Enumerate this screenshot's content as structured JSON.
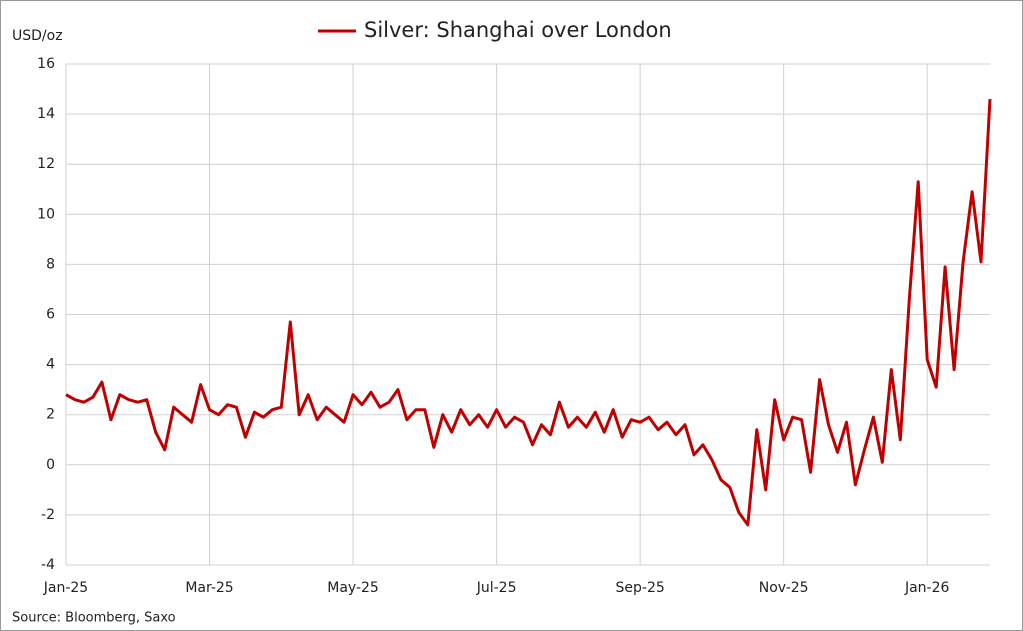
{
  "chart_data": {
    "type": "line",
    "y_label": "USD/oz",
    "source": "Source: Bloomberg, Saxo",
    "categories": [
      "Jan-25",
      null,
      null,
      null,
      null,
      null,
      null,
      null,
      null,
      null,
      null,
      null,
      null,
      null,
      null,
      null,
      "Mar-25",
      null,
      null,
      null,
      null,
      null,
      null,
      null,
      null,
      null,
      null,
      null,
      null,
      null,
      null,
      null,
      "May-25",
      null,
      null,
      null,
      null,
      null,
      null,
      null,
      null,
      null,
      null,
      null,
      null,
      null,
      null,
      null,
      "Jul-25",
      null,
      null,
      null,
      null,
      null,
      null,
      null,
      null,
      null,
      null,
      null,
      null,
      null,
      null,
      null,
      "Sep-25",
      null,
      null,
      null,
      null,
      null,
      null,
      null,
      null,
      null,
      null,
      null,
      null,
      null,
      null,
      null,
      "Nov-25",
      null,
      null,
      null,
      null,
      null,
      null,
      null,
      null,
      null,
      null,
      null,
      null,
      null,
      null,
      null,
      "Jan-26",
      null,
      null,
      null,
      null,
      null,
      null,
      null
    ],
    "series": [
      {
        "name": "Silver: Shanghai over London",
        "color": "#c00000",
        "values": [
          2.8,
          2.6,
          2.5,
          2.7,
          3.3,
          1.8,
          2.8,
          2.6,
          2.5,
          2.6,
          1.3,
          0.6,
          2.3,
          2.0,
          1.7,
          3.2,
          2.2,
          2.0,
          2.4,
          2.3,
          1.1,
          2.1,
          1.9,
          2.2,
          2.3,
          5.7,
          2.0,
          2.8,
          1.8,
          2.3,
          2.0,
          1.7,
          2.8,
          2.4,
          2.9,
          2.3,
          2.5,
          3.0,
          1.8,
          2.2,
          2.2,
          0.7,
          2.0,
          1.3,
          2.2,
          1.6,
          2.0,
          1.5,
          2.2,
          1.5,
          1.9,
          1.7,
          0.8,
          1.6,
          1.2,
          2.5,
          1.5,
          1.9,
          1.5,
          2.1,
          1.3,
          2.2,
          1.1,
          1.8,
          1.7,
          1.9,
          1.4,
          1.7,
          1.2,
          1.6,
          0.4,
          0.8,
          0.2,
          -0.6,
          -0.9,
          -1.9,
          -2.4,
          1.4,
          -1.0,
          2.6,
          1.0,
          1.9,
          1.8,
          -0.3,
          3.4,
          1.6,
          0.5,
          1.7,
          -0.8,
          0.6,
          1.9,
          0.1,
          3.8,
          1.0,
          6.6,
          11.3,
          4.2,
          3.1,
          7.9,
          3.8,
          8.1,
          10.9,
          8.1,
          14.6
        ]
      }
    ],
    "ylim": [
      -4,
      16
    ],
    "yticks": [
      -4,
      -2,
      0,
      2,
      4,
      6,
      8,
      10,
      12,
      14,
      16
    ],
    "grid": true
  }
}
